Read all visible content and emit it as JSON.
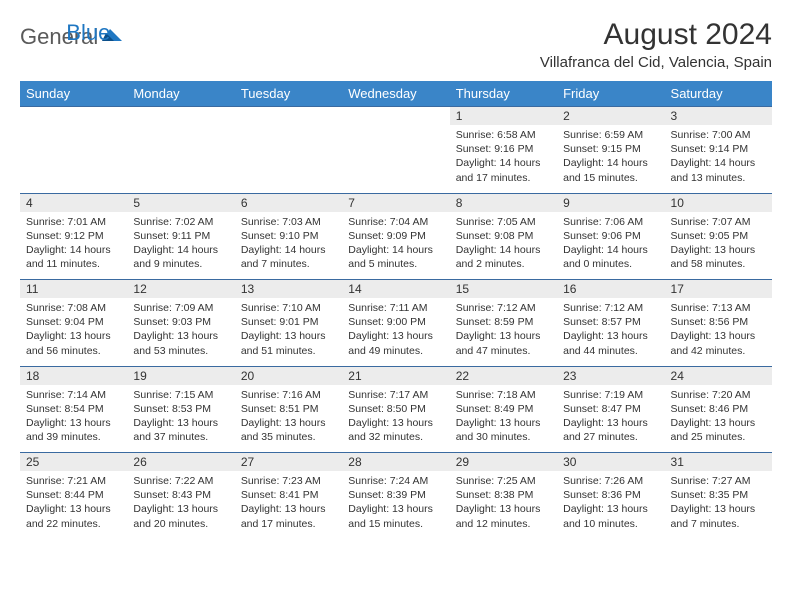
{
  "brand": {
    "part1": "General",
    "part2": "Blue"
  },
  "title": "August 2024",
  "location": "Villafranca del Cid, Valencia, Spain",
  "colors": {
    "header_bg": "#3a85c8",
    "header_text": "#ffffff",
    "daynum_bg": "#ececec",
    "border": "#3a6aa0",
    "brand_dark": "#5a5a5a",
    "brand_blue": "#1f77c2"
  },
  "weekdays": [
    "Sunday",
    "Monday",
    "Tuesday",
    "Wednesday",
    "Thursday",
    "Friday",
    "Saturday"
  ],
  "weeks": [
    [
      null,
      null,
      null,
      null,
      {
        "n": "1",
        "sr": "Sunrise: 6:58 AM",
        "ss": "Sunset: 9:16 PM",
        "dl": "Daylight: 14 hours and 17 minutes."
      },
      {
        "n": "2",
        "sr": "Sunrise: 6:59 AM",
        "ss": "Sunset: 9:15 PM",
        "dl": "Daylight: 14 hours and 15 minutes."
      },
      {
        "n": "3",
        "sr": "Sunrise: 7:00 AM",
        "ss": "Sunset: 9:14 PM",
        "dl": "Daylight: 14 hours and 13 minutes."
      }
    ],
    [
      {
        "n": "4",
        "sr": "Sunrise: 7:01 AM",
        "ss": "Sunset: 9:12 PM",
        "dl": "Daylight: 14 hours and 11 minutes."
      },
      {
        "n": "5",
        "sr": "Sunrise: 7:02 AM",
        "ss": "Sunset: 9:11 PM",
        "dl": "Daylight: 14 hours and 9 minutes."
      },
      {
        "n": "6",
        "sr": "Sunrise: 7:03 AM",
        "ss": "Sunset: 9:10 PM",
        "dl": "Daylight: 14 hours and 7 minutes."
      },
      {
        "n": "7",
        "sr": "Sunrise: 7:04 AM",
        "ss": "Sunset: 9:09 PM",
        "dl": "Daylight: 14 hours and 5 minutes."
      },
      {
        "n": "8",
        "sr": "Sunrise: 7:05 AM",
        "ss": "Sunset: 9:08 PM",
        "dl": "Daylight: 14 hours and 2 minutes."
      },
      {
        "n": "9",
        "sr": "Sunrise: 7:06 AM",
        "ss": "Sunset: 9:06 PM",
        "dl": "Daylight: 14 hours and 0 minutes."
      },
      {
        "n": "10",
        "sr": "Sunrise: 7:07 AM",
        "ss": "Sunset: 9:05 PM",
        "dl": "Daylight: 13 hours and 58 minutes."
      }
    ],
    [
      {
        "n": "11",
        "sr": "Sunrise: 7:08 AM",
        "ss": "Sunset: 9:04 PM",
        "dl": "Daylight: 13 hours and 56 minutes."
      },
      {
        "n": "12",
        "sr": "Sunrise: 7:09 AM",
        "ss": "Sunset: 9:03 PM",
        "dl": "Daylight: 13 hours and 53 minutes."
      },
      {
        "n": "13",
        "sr": "Sunrise: 7:10 AM",
        "ss": "Sunset: 9:01 PM",
        "dl": "Daylight: 13 hours and 51 minutes."
      },
      {
        "n": "14",
        "sr": "Sunrise: 7:11 AM",
        "ss": "Sunset: 9:00 PM",
        "dl": "Daylight: 13 hours and 49 minutes."
      },
      {
        "n": "15",
        "sr": "Sunrise: 7:12 AM",
        "ss": "Sunset: 8:59 PM",
        "dl": "Daylight: 13 hours and 47 minutes."
      },
      {
        "n": "16",
        "sr": "Sunrise: 7:12 AM",
        "ss": "Sunset: 8:57 PM",
        "dl": "Daylight: 13 hours and 44 minutes."
      },
      {
        "n": "17",
        "sr": "Sunrise: 7:13 AM",
        "ss": "Sunset: 8:56 PM",
        "dl": "Daylight: 13 hours and 42 minutes."
      }
    ],
    [
      {
        "n": "18",
        "sr": "Sunrise: 7:14 AM",
        "ss": "Sunset: 8:54 PM",
        "dl": "Daylight: 13 hours and 39 minutes."
      },
      {
        "n": "19",
        "sr": "Sunrise: 7:15 AM",
        "ss": "Sunset: 8:53 PM",
        "dl": "Daylight: 13 hours and 37 minutes."
      },
      {
        "n": "20",
        "sr": "Sunrise: 7:16 AM",
        "ss": "Sunset: 8:51 PM",
        "dl": "Daylight: 13 hours and 35 minutes."
      },
      {
        "n": "21",
        "sr": "Sunrise: 7:17 AM",
        "ss": "Sunset: 8:50 PM",
        "dl": "Daylight: 13 hours and 32 minutes."
      },
      {
        "n": "22",
        "sr": "Sunrise: 7:18 AM",
        "ss": "Sunset: 8:49 PM",
        "dl": "Daylight: 13 hours and 30 minutes."
      },
      {
        "n": "23",
        "sr": "Sunrise: 7:19 AM",
        "ss": "Sunset: 8:47 PM",
        "dl": "Daylight: 13 hours and 27 minutes."
      },
      {
        "n": "24",
        "sr": "Sunrise: 7:20 AM",
        "ss": "Sunset: 8:46 PM",
        "dl": "Daylight: 13 hours and 25 minutes."
      }
    ],
    [
      {
        "n": "25",
        "sr": "Sunrise: 7:21 AM",
        "ss": "Sunset: 8:44 PM",
        "dl": "Daylight: 13 hours and 22 minutes."
      },
      {
        "n": "26",
        "sr": "Sunrise: 7:22 AM",
        "ss": "Sunset: 8:43 PM",
        "dl": "Daylight: 13 hours and 20 minutes."
      },
      {
        "n": "27",
        "sr": "Sunrise: 7:23 AM",
        "ss": "Sunset: 8:41 PM",
        "dl": "Daylight: 13 hours and 17 minutes."
      },
      {
        "n": "28",
        "sr": "Sunrise: 7:24 AM",
        "ss": "Sunset: 8:39 PM",
        "dl": "Daylight: 13 hours and 15 minutes."
      },
      {
        "n": "29",
        "sr": "Sunrise: 7:25 AM",
        "ss": "Sunset: 8:38 PM",
        "dl": "Daylight: 13 hours and 12 minutes."
      },
      {
        "n": "30",
        "sr": "Sunrise: 7:26 AM",
        "ss": "Sunset: 8:36 PM",
        "dl": "Daylight: 13 hours and 10 minutes."
      },
      {
        "n": "31",
        "sr": "Sunrise: 7:27 AM",
        "ss": "Sunset: 8:35 PM",
        "dl": "Daylight: 13 hours and 7 minutes."
      }
    ]
  ]
}
